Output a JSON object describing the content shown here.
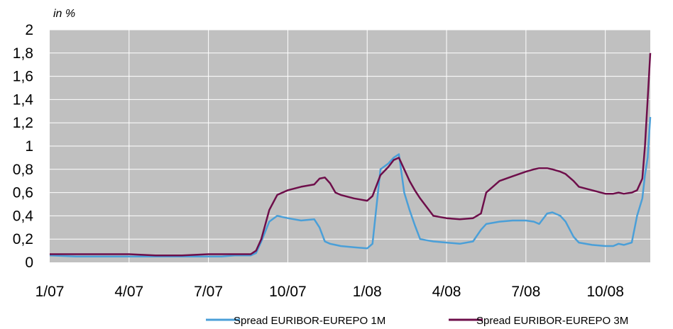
{
  "chart_data": {
    "type": "line",
    "ylabel": "in %",
    "ylim": [
      0,
      2
    ],
    "yticks": [
      "0",
      "0,2",
      "0,4",
      "0,6",
      "0,8",
      "1",
      "1,2",
      "1,4",
      "1,6",
      "1,8",
      "2"
    ],
    "xticks": [
      "1/07",
      "4/07",
      "7/07",
      "10/07",
      "1/08",
      "4/08",
      "7/08",
      "10/08"
    ],
    "xlim": [
      0,
      22.7
    ],
    "grid": true,
    "legend_position": "bottom",
    "series": [
      {
        "name": "Spread EURIBOR-EUREPO 1M",
        "color": "#4a9fd8",
        "x": [
          0,
          1,
          2,
          3,
          4,
          5,
          6,
          6.5,
          7,
          7.3,
          7.6,
          7.8,
          8.0,
          8.3,
          8.6,
          9.0,
          9.5,
          10.0,
          10.2,
          10.4,
          10.6,
          10.8,
          11.0,
          11.5,
          12.0,
          12.2,
          12.5,
          12.8,
          13.0,
          13.2,
          13.4,
          13.6,
          13.8,
          14.0,
          14.5,
          15.0,
          15.5,
          16.0,
          16.3,
          16.5,
          17.0,
          17.5,
          18.0,
          18.3,
          18.5,
          18.8,
          19.0,
          19.3,
          19.5,
          19.8,
          20.0,
          20.5,
          21.0,
          21.3,
          21.5,
          21.7,
          22.0,
          22.2,
          22.4,
          22.5,
          22.6,
          22.7
        ],
        "values": [
          0.06,
          0.05,
          0.05,
          0.05,
          0.05,
          0.05,
          0.05,
          0.05,
          0.06,
          0.06,
          0.06,
          0.08,
          0.18,
          0.35,
          0.4,
          0.38,
          0.36,
          0.37,
          0.3,
          0.18,
          0.16,
          0.15,
          0.14,
          0.13,
          0.12,
          0.16,
          0.8,
          0.85,
          0.9,
          0.93,
          0.6,
          0.45,
          0.32,
          0.2,
          0.18,
          0.17,
          0.16,
          0.18,
          0.28,
          0.33,
          0.35,
          0.36,
          0.36,
          0.35,
          0.33,
          0.42,
          0.43,
          0.4,
          0.35,
          0.22,
          0.17,
          0.15,
          0.14,
          0.14,
          0.16,
          0.15,
          0.17,
          0.4,
          0.55,
          0.75,
          0.9,
          1.25
        ]
      },
      {
        "name": "Spread EURIBOR-EUREPO 3M",
        "color": "#6e0e4a",
        "x": [
          0,
          1,
          2,
          3,
          4,
          5,
          6,
          6.5,
          7,
          7.3,
          7.6,
          7.8,
          8.0,
          8.3,
          8.6,
          9.0,
          9.5,
          10.0,
          10.2,
          10.4,
          10.6,
          10.8,
          11.0,
          11.5,
          12.0,
          12.2,
          12.5,
          12.8,
          13.0,
          13.2,
          13.4,
          13.6,
          13.8,
          14.0,
          14.5,
          15.0,
          15.5,
          16.0,
          16.3,
          16.5,
          17.0,
          17.5,
          18.0,
          18.3,
          18.5,
          18.8,
          19.0,
          19.3,
          19.5,
          19.8,
          20.0,
          20.5,
          21.0,
          21.3,
          21.5,
          21.7,
          22.0,
          22.2,
          22.4,
          22.5,
          22.6,
          22.7
        ],
        "values": [
          0.07,
          0.07,
          0.07,
          0.07,
          0.06,
          0.06,
          0.07,
          0.07,
          0.07,
          0.07,
          0.07,
          0.1,
          0.2,
          0.45,
          0.58,
          0.62,
          0.65,
          0.67,
          0.72,
          0.73,
          0.68,
          0.6,
          0.58,
          0.55,
          0.53,
          0.57,
          0.75,
          0.82,
          0.88,
          0.9,
          0.8,
          0.7,
          0.62,
          0.55,
          0.4,
          0.38,
          0.37,
          0.38,
          0.42,
          0.6,
          0.7,
          0.74,
          0.78,
          0.8,
          0.81,
          0.81,
          0.8,
          0.78,
          0.76,
          0.7,
          0.65,
          0.62,
          0.59,
          0.59,
          0.6,
          0.59,
          0.6,
          0.62,
          0.72,
          1.0,
          1.4,
          1.8
        ]
      }
    ]
  }
}
